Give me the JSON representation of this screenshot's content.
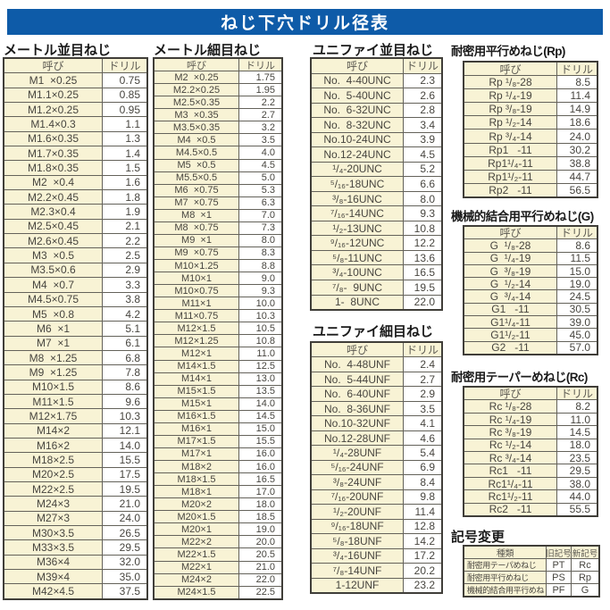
{
  "page_title": "ねじ下穴ドリル径表",
  "colors": {
    "banner_blue": "#0e5ba8",
    "cell_yellow": "#f8f3d5",
    "border_dark": "#403e39"
  },
  "sections": {
    "metric_coarse": {
      "title": "メートル並目ねじ",
      "headers": [
        "呼び",
        "ドリル"
      ],
      "rows": [
        [
          "M1  ×0.25",
          "0.75"
        ],
        [
          "M1.1×0.25",
          "0.85"
        ],
        [
          "M1.2×0.25",
          "0.95"
        ],
        [
          "M1.4×0.3",
          "1.1"
        ],
        [
          "M1.6×0.35",
          "1.3"
        ],
        [
          "M1.7×0.35",
          "1.4"
        ],
        [
          "M1.8×0.35",
          "1.5"
        ],
        [
          "M2  ×0.4",
          "1.6"
        ],
        [
          "M2.2×0.45",
          "1.8"
        ],
        [
          "M2.3×0.4",
          "1.9"
        ],
        [
          "M2.5×0.45",
          "2.1"
        ],
        [
          "M2.6×0.45",
          "2.2"
        ],
        [
          "M3  ×0.5",
          "2.5"
        ],
        [
          "M3.5×0.6",
          "2.9"
        ],
        [
          "M4  ×0.7",
          "3.3"
        ],
        [
          "M4.5×0.75",
          "3.8"
        ],
        [
          "M5  ×0.8",
          "4.2"
        ],
        [
          "M6  ×1",
          "5.1"
        ],
        [
          "M7  ×1",
          "6.1"
        ],
        [
          "M8  ×1.25",
          "6.8"
        ],
        [
          "M9  ×1.25",
          "7.8"
        ],
        [
          "M10×1.5",
          "8.6"
        ],
        [
          "M11×1.5",
          "9.6"
        ],
        [
          "M12×1.75",
          "10.3"
        ],
        [
          "M14×2",
          "12.1"
        ],
        [
          "M16×2",
          "14.0"
        ],
        [
          "M18×2.5",
          "15.5"
        ],
        [
          "M20×2.5",
          "17.5"
        ],
        [
          "M22×2.5",
          "19.5"
        ],
        [
          "M24×3",
          "21.0"
        ],
        [
          "M27×3",
          "24.0"
        ],
        [
          "M30×3.5",
          "26.5"
        ],
        [
          "M33×3.5",
          "29.5"
        ],
        [
          "M36×4",
          "32.0"
        ],
        [
          "M39×4",
          "35.0"
        ],
        [
          "M42×4.5",
          "37.5"
        ]
      ]
    },
    "metric_fine": {
      "title": "メートル細目ねじ",
      "headers": [
        "呼び",
        "ドリル"
      ],
      "rows": [
        [
          "M2  ×0.25",
          "1.75"
        ],
        [
          "M2.2×0.25",
          "1.95"
        ],
        [
          "M2.5×0.35",
          "2.2"
        ],
        [
          "M3  ×0.35",
          "2.7"
        ],
        [
          "M3.5×0.35",
          "3.2"
        ],
        [
          "M4  ×0.5",
          "3.5"
        ],
        [
          "M4.5×0.5",
          "4.0"
        ],
        [
          "M5  ×0.5",
          "4.5"
        ],
        [
          "M5.5×0.5",
          "5.0"
        ],
        [
          "M6  ×0.75",
          "5.3"
        ],
        [
          "M7  ×0.75",
          "6.3"
        ],
        [
          "M8  ×1",
          "7.0"
        ],
        [
          "M8  ×0.75",
          "7.3"
        ],
        [
          "M9  ×1",
          "8.0"
        ],
        [
          "M9  ×0.75",
          "8.3"
        ],
        [
          "M10×1.25",
          "8.8"
        ],
        [
          "M10×1",
          "9.0"
        ],
        [
          "M10×0.75",
          "9.3"
        ],
        [
          "M11×1",
          "10.0"
        ],
        [
          "M11×0.75",
          "10.3"
        ],
        [
          "M12×1.5",
          "10.5"
        ],
        [
          "M12×1.25",
          "10.8"
        ],
        [
          "M12×1",
          "11.0"
        ],
        [
          "M14×1.5",
          "12.5"
        ],
        [
          "M14×1",
          "13.0"
        ],
        [
          "M15×1.5",
          "13.5"
        ],
        [
          "M15×1",
          "14.0"
        ],
        [
          "M16×1.5",
          "14.5"
        ],
        [
          "M16×1",
          "15.0"
        ],
        [
          "M17×1.5",
          "15.5"
        ],
        [
          "M17×1",
          "16.0"
        ],
        [
          "M18×2",
          "16.0"
        ],
        [
          "M18×1.5",
          "16.5"
        ],
        [
          "M18×1",
          "17.0"
        ],
        [
          "M20×2",
          "18.0"
        ],
        [
          "M20×1.5",
          "18.5"
        ],
        [
          "M20×1",
          "19.0"
        ],
        [
          "M22×2",
          "20.0"
        ],
        [
          "M22×1.5",
          "20.5"
        ],
        [
          "M22×1",
          "21.0"
        ],
        [
          "M24×2",
          "22.0"
        ],
        [
          "M24×1.5",
          "22.5"
        ]
      ]
    },
    "unified_coarse": {
      "title": "ユニファイ並目ねじ",
      "headers": [
        "呼び",
        "ドリル"
      ],
      "rows": [
        [
          "No.  4-40UNC",
          "2.3"
        ],
        [
          "No.  5-40UNC",
          "2.6"
        ],
        [
          "No.  6-32UNC",
          "2.8"
        ],
        [
          "No.  8-32UNC",
          "3.4"
        ],
        [
          "No.10-24UNC",
          "3.9"
        ],
        [
          "No.12-24UNC",
          "4.5"
        ],
        [
          "¹/₄-20UNC",
          "5.2"
        ],
        [
          "⁵/₁₆-18UNC",
          "6.6"
        ],
        [
          "³/₈-16UNC",
          "8.0"
        ],
        [
          "⁷/₁₆-14UNC",
          "9.3"
        ],
        [
          "¹/₂-13UNC",
          "10.8"
        ],
        [
          "⁹/₁₆-12UNC",
          "12.2"
        ],
        [
          "⁵/₈-11UNC",
          "13.6"
        ],
        [
          "³/₄-10UNC",
          "16.5"
        ],
        [
          "⁷/₈-  9UNC",
          "19.5"
        ],
        [
          "1-  8UNC",
          "22.0"
        ]
      ]
    },
    "unified_fine": {
      "title": "ユニファイ細目ねじ",
      "headers": [
        "呼び",
        "ドリル"
      ],
      "rows": [
        [
          "No.  4-48UNF",
          "2.4"
        ],
        [
          "No.  5-44UNF",
          "2.7"
        ],
        [
          "No.  6-40UNF",
          "2.9"
        ],
        [
          "No.  8-36UNF",
          "3.5"
        ],
        [
          "No.10-32UNF",
          "4.1"
        ],
        [
          "No.12-28UNF",
          "4.6"
        ],
        [
          "¹/₄-28UNF",
          "5.4"
        ],
        [
          "⁵/₁₆-24UNF",
          "6.9"
        ],
        [
          "³/₈-24UNF",
          "8.4"
        ],
        [
          "⁷/₁₆-20UNF",
          "9.8"
        ],
        [
          "¹/₂-20UNF",
          "11.4"
        ],
        [
          "⁹/₁₆-18UNF",
          "12.8"
        ],
        [
          "⁵/₈-18UNF",
          "14.2"
        ],
        [
          "³/₄-16UNF",
          "17.2"
        ],
        [
          "⁷/₈-14UNF",
          "20.2"
        ],
        [
          "1-12UNF",
          "23.2"
        ]
      ]
    },
    "rp": {
      "title": "耐密用平行めねじ(Rp)",
      "headers": [
        "呼び",
        "ドリル"
      ],
      "rows": [
        [
          "Rp ¹/₈-28",
          "8.5"
        ],
        [
          "Rp ¹/₄-19",
          "11.4"
        ],
        [
          "Rp ³/₈-19",
          "14.9"
        ],
        [
          "Rp ¹/₂-14",
          "18.6"
        ],
        [
          "Rp ³/₄-14",
          "24.0"
        ],
        [
          "Rp1   -11",
          "30.2"
        ],
        [
          "Rp1¹/₄-11",
          "38.8"
        ],
        [
          "Rp1¹/₂-11",
          "44.7"
        ],
        [
          "Rp2   -11",
          "56.5"
        ]
      ]
    },
    "g": {
      "title": "機械的結合用平行めねじ(G)",
      "headers": [
        "呼び",
        "ドリル"
      ],
      "rows": [
        [
          "G  ¹/₈-28",
          "8.6"
        ],
        [
          "G  ¹/₄-19",
          "11.5"
        ],
        [
          "G  ³/₈-19",
          "15.0"
        ],
        [
          "G  ¹/₂-14",
          "19.0"
        ],
        [
          "G  ³/₄-14",
          "24.5"
        ],
        [
          "G1   -11",
          "30.5"
        ],
        [
          "G1¹/₄-11",
          "39.0"
        ],
        [
          "G1¹/₂-11",
          "45.0"
        ],
        [
          "G2   -11",
          "57.0"
        ]
      ]
    },
    "rc": {
      "title": "耐密用テーパーめねじ(Rc)",
      "headers": [
        "呼び",
        "ドリル"
      ],
      "rows": [
        [
          "Rc ¹/₈-28",
          "8.2"
        ],
        [
          "Rc ¹/₄-19",
          "11.0"
        ],
        [
          "Rc ³/₈-19",
          "14.5"
        ],
        [
          "Rc ¹/₂-14",
          "18.0"
        ],
        [
          "Rc ³/₄-14",
          "23.5"
        ],
        [
          "Rc1   -11",
          "29.5"
        ],
        [
          "Rc1¹/₄-11",
          "38.0"
        ],
        [
          "Rc1¹/₂-11",
          "44.0"
        ],
        [
          "Rc2   -11",
          "55.5"
        ]
      ]
    },
    "symbol_change": {
      "title": "記号変更",
      "headers": [
        "種類",
        "旧記号",
        "新記号"
      ],
      "rows": [
        [
          "耐密用テーパめねじ",
          "PT",
          "Rc"
        ],
        [
          "耐密用平行めねじ",
          "PS",
          "Rp"
        ],
        [
          "機械的結合用平行めねじ",
          "PF",
          "G"
        ]
      ]
    }
  }
}
